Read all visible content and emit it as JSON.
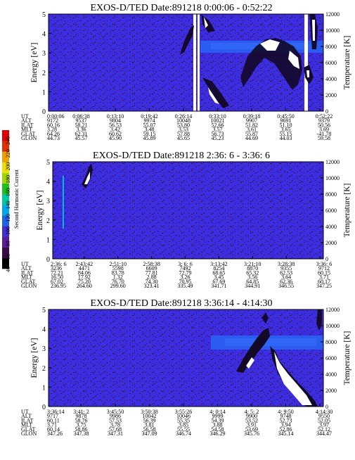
{
  "colors": {
    "background": "#3d2de0",
    "band": "#2a5cf0",
    "speckle": "#2a1f7a",
    "dark": "#1a0e3a",
    "white": "#ffffff"
  },
  "colorbar": {
    "label": "Second Harmonic Current",
    "ticks": [
      "40",
      "60",
      "80",
      "100",
      "120",
      "140",
      "160",
      "180",
      "200",
      "220",
      "240"
    ],
    "colors": [
      "#000000",
      "#3a0a48",
      "#5a1a9a",
      "#4030d0",
      "#2060e8",
      "#00a8e8",
      "#00c8a0",
      "#20c020",
      "#a0d800",
      "#f0e000",
      "#f0a000",
      "#e03000",
      "#e00000"
    ]
  },
  "chart_data": [
    {
      "type": "heatmap",
      "title": "EXOS-D/TED    Date:891218   0:00:06 - 0:52:22",
      "ylabel": "Energy [eV]",
      "y2label": "Temperature [K]",
      "ylim": [
        0,
        5
      ],
      "y2lim": [
        0,
        12000
      ],
      "yticks": [
        "0",
        "1",
        "2",
        "3",
        "4",
        "5"
      ],
      "y2ticks": [
        "0",
        "2000",
        "4000",
        "6000",
        "8000",
        "10000",
        "12000"
      ],
      "table": {
        "row_labels": [
          "UT",
          "ALT",
          "ILAT",
          "MLT",
          "GLAT",
          "GLON"
        ],
        "columns": [
          [
            "0:00:06",
            "9172",
            "60.16",
            "3.28",
            "64.26",
            "44.73"
          ],
          [
            "0:06:38",
            "9537",
            "58.21",
            "3.36",
            "62.31",
            "45.57"
          ],
          [
            "0:13:10",
            "9804",
            "56.53",
            "3.42",
            "60.62",
            "45.90"
          ],
          [
            "0:19:42",
            "9974",
            "55.07",
            "3.48",
            "59.15",
            "45.89"
          ],
          [
            "0:26:14",
            "10048",
            "53.80",
            "3.53",
            "57.88",
            "45.65"
          ],
          [
            "0:33:10",
            "10021",
            "52.66",
            "3.57",
            "56.73",
            "45.23"
          ],
          [
            "0:39:18",
            "9907",
            "51.82",
            "3.61",
            "55.87",
            "44.69"
          ],
          [
            "0:45:50",
            "9691",
            "51.10",
            "3.65",
            "55.15",
            "44.03"
          ],
          [
            "0:52:22",
            "9379",
            "50.56",
            "3.69",
            "-41.78",
            "59.58"
          ]
        ]
      }
    },
    {
      "type": "heatmap",
      "title": "EXOS-D/TED   Date:891218   2:36: 6 - 3:36: 6",
      "ylabel": "Energy [eV]",
      "y2label": "Temperature [K]",
      "ylim": [
        0,
        5
      ],
      "y2lim": [
        0,
        12000
      ],
      "yticks": [
        "0",
        "1",
        "2",
        "3",
        "4",
        "5"
      ],
      "y2ticks": [
        "0",
        "2000",
        "4000",
        "6000",
        "8000",
        "10000",
        "12000"
      ],
      "table": {
        "row_labels": [
          "UT",
          "ALT",
          "ILAT",
          "MLT",
          "GLAT",
          "GLON"
        ],
        "columns": [
          [
            "2:36: 6",
            "3236",
            "72.21",
            "16.50",
            "67.02",
            "236.95"
          ],
          [
            "2:43:42",
            "4471",
            "84.06",
            "17.92",
            "75.20",
            "264.60"
          ],
          [
            "2:51:10",
            "5598",
            "83.78",
            "1.32",
            "76.70",
            "299.60"
          ],
          [
            "2:58:38",
            "6609",
            "77.81",
            "2.88",
            "74.30",
            "323.41"
          ],
          [
            "3: 6: 6",
            "7492",
            "72.79",
            "3.26",
            "70.95",
            "335.49"
          ],
          [
            "3:13:42",
            "8254",
            "68.65",
            "3.45",
            "67.69",
            "341.71"
          ],
          [
            "3:21:10",
            "8870",
            "65.32",
            "3.56",
            "64.85",
            "344.91"
          ],
          [
            "3:28:38",
            "9355",
            "62.53",
            "3.64",
            "62.36",
            "346.55"
          ],
          [
            "3:36: 6",
            "9712",
            "60.15",
            "3.71",
            "60.17",
            "347.25"
          ]
        ]
      }
    },
    {
      "type": "heatmap",
      "title": "EXOS-D/TED   Date:891218   3:36:14 - 4:14:30",
      "ylabel": "Energy [eV]",
      "y2label": "Temperature [K]",
      "ylim": [
        0,
        5
      ],
      "y2lim": [
        0,
        12000
      ],
      "yticks": [
        "0",
        "1",
        "2",
        "3",
        "4",
        "5"
      ],
      "y2ticks": [
        "0",
        "2000",
        "4000",
        "6000",
        "8000",
        "10000",
        "12000"
      ],
      "table": {
        "row_labels": [
          "UT",
          "ALT",
          "ILAT",
          "MLT",
          "GLAT",
          "GLON"
        ],
        "columns": [
          [
            "3:36:14",
            "9717",
            "60.11",
            "3.71",
            "60.14",
            "347.26"
          ],
          [
            "3:41: 2",
            "9878",
            "58.76",
            "3.75",
            "58.86",
            "347.38"
          ],
          [
            "3:45:50",
            "9986",
            "57.53",
            "3.78",
            "57.68",
            "347.31"
          ],
          [
            "3:50:38",
            "10042",
            "56.39",
            "3.81",
            "56.58",
            "347.09"
          ],
          [
            "3:55:26",
            "10046",
            "55.35",
            "3.85",
            "55.55",
            "346.74"
          ],
          [
            "4: 0:14",
            "9999",
            "54.39",
            "3.88",
            "54.58",
            "346.29"
          ],
          [
            "4: 5: 2",
            "9900",
            "53.52",
            "3.91",
            "53.69",
            "345.76"
          ],
          [
            "4: 9:50",
            "9748",
            "52.73",
            "3.94",
            "52.86",
            "345.14"
          ],
          [
            "4:14:30",
            "9550",
            "52.05",
            "3.97",
            "52.12",
            "344.47"
          ]
        ]
      }
    }
  ]
}
